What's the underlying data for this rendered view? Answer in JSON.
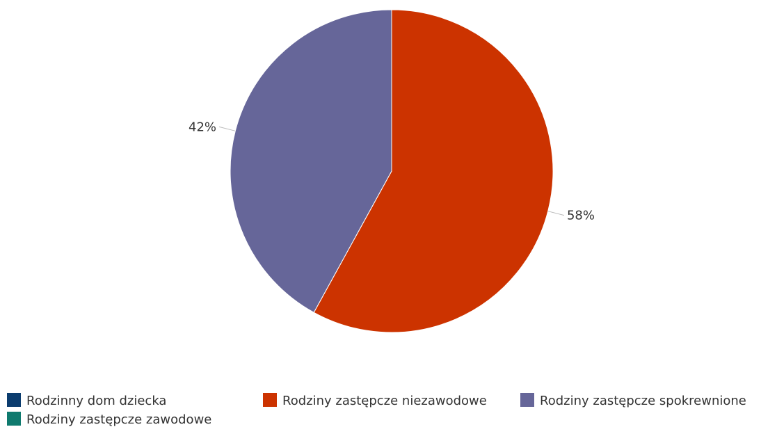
{
  "chart_data": {
    "type": "pie",
    "title": "",
    "legend_position": "bottom",
    "series": [
      {
        "name": "Rodzinny dom dziecka",
        "value": 0,
        "color": "#0b3c6e",
        "label": ""
      },
      {
        "name": "Rodziny zastępcze niezawodowe",
        "value": 58,
        "color": "#cc3300",
        "label": "58%"
      },
      {
        "name": "Rodziny zastępcze spokrewnione",
        "value": 42,
        "color": "#666699",
        "label": "42%"
      },
      {
        "name": "Rodziny zastępcze zawodowe",
        "value": 0,
        "color": "#0f7a6e",
        "label": ""
      }
    ]
  }
}
